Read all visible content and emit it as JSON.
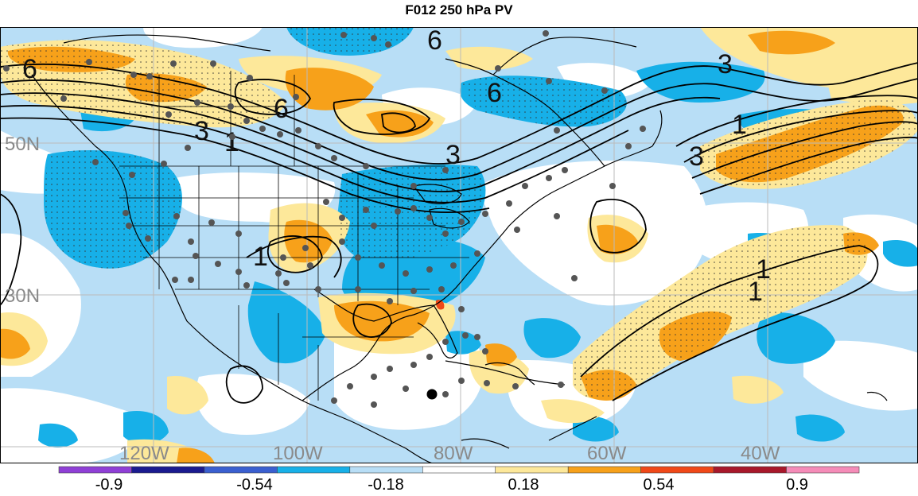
{
  "title": "F012 250 hPa PV",
  "lat_labels": [
    "50N",
    "30N"
  ],
  "lon_labels": [
    "120W",
    "100W",
    "80W",
    "60W",
    "40W"
  ],
  "contour_labels": [
    "6",
    "6",
    "6",
    "3",
    "1",
    "3",
    "6",
    "3",
    "1",
    "3",
    "1",
    "1",
    "1"
  ],
  "colorbar": {
    "tick_labels": [
      "-0.9",
      "-0.54",
      "-0.18",
      "0.18",
      "0.54",
      "0.9"
    ],
    "colors": [
      "#8f3fd6",
      "#1a1a8f",
      "#3a5fd0",
      "#17b0e8",
      "#b8def6",
      "#ffffff",
      "#fde89a",
      "#f7a11a",
      "#f04818",
      "#a8182a",
      "#f58cb8"
    ]
  },
  "colors": {
    "neg_strong": "#17b0e8",
    "neg_weak": "#b8def6",
    "pos_weak": "#fde89a",
    "pos_strong": "#f7a11a",
    "pos_extreme": "#f04818",
    "contour": "#000000",
    "coast": "#000000",
    "station": "#555555"
  }
}
